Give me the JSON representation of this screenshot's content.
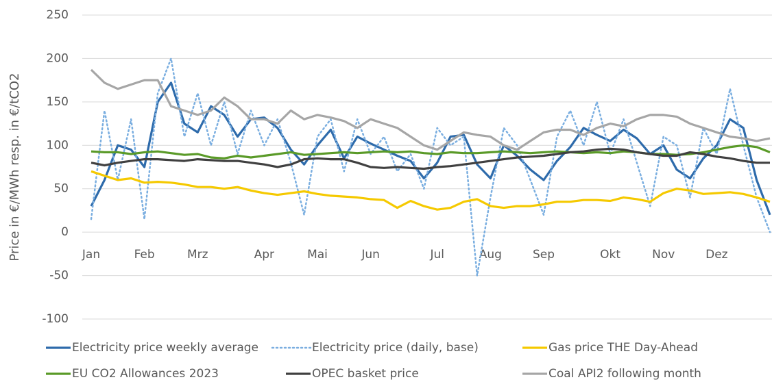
{
  "chart_data": {
    "type": "line",
    "ylabel": "Price in €/MWh resp. in €/tCO2",
    "categories": [
      "Jan",
      null,
      null,
      null,
      "Feb",
      null,
      null,
      null,
      "Mrz",
      null,
      null,
      null,
      null,
      "Apr",
      null,
      null,
      null,
      "Mai",
      null,
      null,
      null,
      "Jun",
      null,
      null,
      null,
      null,
      "Jul",
      null,
      null,
      null,
      "Aug",
      null,
      null,
      null,
      "Sep",
      null,
      null,
      null,
      null,
      "Okt",
      null,
      null,
      null,
      "Nov",
      null,
      null,
      null,
      "Dez",
      null,
      null,
      null,
      null
    ],
    "series": [
      {
        "name": "Electricity price weekly average",
        "color": "#2e6bab",
        "dash": "solid",
        "values": [
          30,
          60,
          100,
          95,
          75,
          150,
          172,
          125,
          115,
          145,
          135,
          110,
          130,
          132,
          120,
          95,
          78,
          100,
          118,
          85,
          110,
          102,
          95,
          88,
          82,
          62,
          80,
          110,
          112,
          78,
          62,
          100,
          88,
          72,
          60,
          82,
          98,
          120,
          112,
          105,
          118,
          108,
          90,
          100,
          72,
          62,
          85,
          100,
          130,
          120,
          60,
          20
        ]
      },
      {
        "name": "Electricity price (daily, base)",
        "color": "#7aaee0",
        "dash": "dotted",
        "values": [
          15,
          140,
          60,
          130,
          15,
          160,
          200,
          110,
          160,
          100,
          150,
          90,
          140,
          100,
          130,
          80,
          20,
          110,
          130,
          70,
          130,
          90,
          110,
          70,
          90,
          50,
          120,
          100,
          110,
          -50,
          40,
          120,
          100,
          60,
          20,
          110,
          140,
          100,
          150,
          90,
          130,
          80,
          30,
          110,
          100,
          40,
          120,
          90,
          165,
          100,
          40,
          0
        ]
      },
      {
        "name": "Gas price THE Day-Ahead",
        "color": "#f5c900",
        "dash": "solid",
        "values": [
          70,
          65,
          60,
          62,
          57,
          58,
          57,
          55,
          52,
          52,
          50,
          52,
          48,
          45,
          43,
          45,
          47,
          44,
          42,
          41,
          40,
          38,
          37,
          28,
          36,
          30,
          26,
          28,
          35,
          38,
          30,
          28,
          30,
          30,
          32,
          35,
          35,
          37,
          37,
          36,
          40,
          38,
          35,
          45,
          50,
          48,
          44,
          45,
          46,
          44,
          40,
          35
        ]
      },
      {
        "name": "EU CO2 Allowances 2023",
        "color": "#5a9a28",
        "dash": "solid",
        "values": [
          93,
          92,
          92,
          90,
          92,
          93,
          91,
          89,
          90,
          86,
          85,
          88,
          86,
          88,
          90,
          92,
          89,
          90,
          91,
          92,
          91,
          92,
          93,
          92,
          93,
          91,
          90,
          92,
          91,
          91,
          92,
          93,
          92,
          91,
          92,
          93,
          92,
          91,
          92,
          91,
          93,
          92,
          90,
          90,
          89,
          90,
          92,
          95,
          98,
          100,
          98,
          92
        ]
      },
      {
        "name": "OPEC basket price",
        "color": "#404040",
        "dash": "solid",
        "values": [
          80,
          77,
          80,
          82,
          84,
          84,
          83,
          82,
          84,
          83,
          82,
          82,
          80,
          78,
          75,
          78,
          84,
          85,
          84,
          84,
          80,
          75,
          74,
          75,
          74,
          73,
          75,
          76,
          78,
          80,
          82,
          84,
          86,
          87,
          88,
          90,
          92,
          93,
          95,
          96,
          95,
          92,
          90,
          88,
          88,
          92,
          90,
          87,
          85,
          82,
          80,
          80
        ]
      },
      {
        "name": "Coal API2 following month",
        "color": "#a6a6a6",
        "dash": "solid",
        "values": [
          187,
          172,
          165,
          170,
          175,
          175,
          145,
          140,
          135,
          140,
          155,
          145,
          130,
          130,
          125,
          140,
          130,
          135,
          132,
          128,
          120,
          130,
          125,
          120,
          110,
          100,
          95,
          105,
          115,
          112,
          110,
          100,
          95,
          105,
          115,
          118,
          118,
          112,
          120,
          125,
          122,
          130,
          135,
          135,
          133,
          125,
          120,
          115,
          110,
          108,
          105,
          108
        ]
      }
    ],
    "ylim": [
      -100,
      250
    ],
    "yticks": [
      -100,
      -50,
      0,
      50,
      100,
      150,
      200,
      250
    ],
    "grid": true
  }
}
